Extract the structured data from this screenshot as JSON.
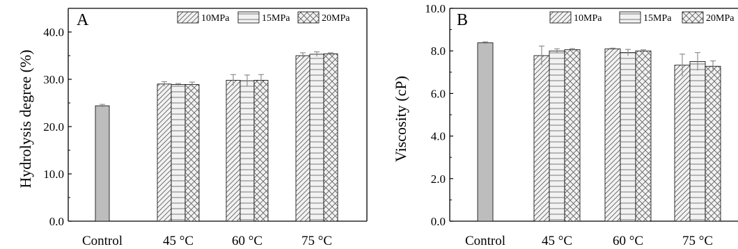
{
  "colors": {
    "control_fill": "#bdbdbd",
    "bar_fill": "#f2f2f2",
    "pattern_stroke": "#5a5a5a",
    "error_bar": "#7a7a7a",
    "axis": "#000000"
  },
  "chart_data": [
    {
      "type": "bar",
      "panel_label": "A",
      "ylabel": "Hydrolysis degree (%)",
      "xlabel": "",
      "ylim": [
        0,
        45
      ],
      "yticks": [
        0,
        10,
        20,
        30,
        40
      ],
      "ytick_labels": [
        "0.0",
        "10.0",
        "20.0",
        "30.0",
        "40.0"
      ],
      "grid": false,
      "legend_position": "top-right",
      "categories": [
        "Control",
        "45 °C",
        "60 °C",
        "75 °C"
      ],
      "control": {
        "category": "Control",
        "value": 24.4,
        "error": 0.3
      },
      "series": [
        {
          "name": "10MPa",
          "pattern": "diagonal",
          "values": [
            null,
            29.0,
            29.8,
            35.0
          ],
          "errors": [
            null,
            0.5,
            1.2,
            0.6
          ]
        },
        {
          "name": "15MPa",
          "pattern": "horizontal",
          "values": [
            null,
            28.9,
            29.7,
            35.3
          ],
          "errors": [
            null,
            0.2,
            1.2,
            0.5
          ]
        },
        {
          "name": "20MPa",
          "pattern": "crosshatch",
          "values": [
            null,
            28.9,
            29.8,
            35.4
          ],
          "errors": [
            null,
            0.5,
            1.2,
            0.2
          ]
        }
      ]
    },
    {
      "type": "bar",
      "panel_label": "B",
      "ylabel": "Viscosity (cP)",
      "xlabel": "",
      "ylim": [
        0,
        10
      ],
      "yticks": [
        0,
        2,
        4,
        6,
        8,
        10
      ],
      "ytick_labels": [
        "0.0",
        "2.0",
        "4.0",
        "6.0",
        "8.0",
        "10.0"
      ],
      "grid": false,
      "legend_position": "top-right",
      "categories": [
        "Control",
        "45 °C",
        "60 °C",
        "75 °C"
      ],
      "control": {
        "category": "Control",
        "value": 8.38,
        "error": 0.05
      },
      "series": [
        {
          "name": "10MPa",
          "pattern": "diagonal",
          "values": [
            null,
            7.78,
            8.1,
            7.33
          ],
          "errors": [
            null,
            0.45,
            0.03,
            0.52
          ]
        },
        {
          "name": "15MPa",
          "pattern": "horizontal",
          "values": [
            null,
            8.0,
            7.92,
            7.5
          ],
          "errors": [
            null,
            0.1,
            0.15,
            0.42
          ]
        },
        {
          "name": "20MPa",
          "pattern": "crosshatch",
          "values": [
            null,
            8.06,
            8.0,
            7.28
          ],
          "errors": [
            null,
            0.05,
            0.05,
            0.25
          ]
        }
      ]
    }
  ]
}
